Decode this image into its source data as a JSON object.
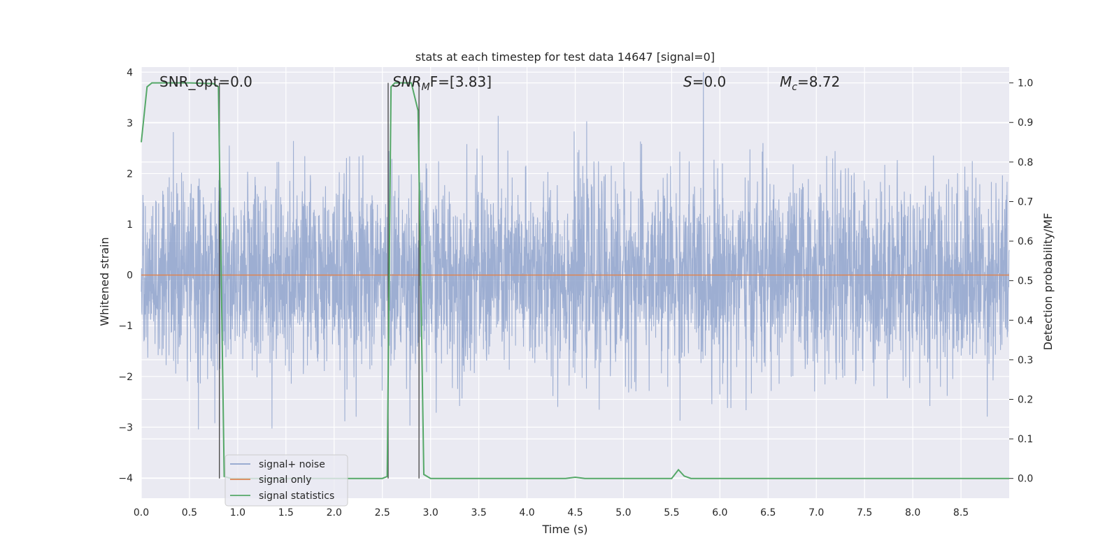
{
  "chart_data": {
    "type": "line",
    "title": "stats at each timestep for test data 14647 [signal=0]",
    "xlabel": "Time (s)",
    "ylabel_left": "Whitened strain",
    "ylabel_right": "Detection probability/MF",
    "xlim": [
      0.0,
      9.0
    ],
    "ylim_left": [
      -4.4,
      4.1
    ],
    "ylim_right": [
      -0.05,
      1.04
    ],
    "x_ticks": [
      0.0,
      0.5,
      1.0,
      1.5,
      2.0,
      2.5,
      3.0,
      3.5,
      4.0,
      4.5,
      5.0,
      5.5,
      6.0,
      6.5,
      7.0,
      7.5,
      8.0,
      8.5
    ],
    "x_tick_labels": [
      "0.0",
      "0.5",
      "1.0",
      "1.5",
      "2.0",
      "2.5",
      "3.0",
      "3.5",
      "4.0",
      "4.5",
      "5.0",
      "5.5",
      "6.0",
      "6.5",
      "7.0",
      "7.5",
      "8.0",
      "8.5"
    ],
    "y_left_ticks": [
      -4,
      -3,
      -2,
      -1,
      0,
      1,
      2,
      3,
      4
    ],
    "y_left_tick_labels": [
      "−4",
      "−3",
      "−2",
      "−1",
      "0",
      "1",
      "2",
      "3",
      "4"
    ],
    "y_right_ticks": [
      0.0,
      0.1,
      0.2,
      0.3,
      0.4,
      0.5,
      0.6,
      0.7,
      0.8,
      0.9,
      1.0
    ],
    "y_right_tick_labels": [
      "0.0",
      "0.1",
      "0.2",
      "0.3",
      "0.4",
      "0.5",
      "0.6",
      "0.7",
      "0.8",
      "0.9",
      "1.0"
    ],
    "grid": true,
    "legend_position": "lower-left",
    "annotations": {
      "snr_opt": "SNR_opt=0.0",
      "snr_mf_main": "SNR",
      "snr_mf_sub": "M",
      "snr_mf_tail": "F=[3.83]",
      "s_main": "S",
      "s_tail": "=0.0",
      "mc_main": "M",
      "mc_sub": "c",
      "mc_tail": "=8.72"
    },
    "series": [
      {
        "name": "signal+ noise",
        "color": "#8fa3cc",
        "description_axis": "left",
        "noise_std": 0.95,
        "clip": [
          -4.0,
          4.0
        ]
      },
      {
        "name": "signal only",
        "color": "#dd8452",
        "description_axis": "left",
        "x": [
          0.0,
          9.0
        ],
        "y": [
          0.0,
          0.0
        ]
      },
      {
        "name": "signal statistics",
        "color": "#55a868",
        "description_axis": "right",
        "x": [
          0.0,
          0.06,
          0.11,
          0.5,
          0.75,
          0.8,
          0.86,
          0.93,
          2.5,
          2.55,
          2.59,
          2.63,
          2.8,
          2.87,
          2.93,
          3.0,
          4.4,
          4.5,
          4.6,
          5.5,
          5.57,
          5.63,
          5.7,
          9.0
        ],
        "y": [
          0.85,
          0.99,
          1.0,
          1.0,
          0.998,
          0.99,
          0.005,
          0.0,
          0.0,
          0.005,
          0.99,
          1.0,
          1.0,
          0.93,
          0.01,
          0.0,
          0.0,
          0.003,
          0.0,
          0.0,
          0.022,
          0.006,
          0.0,
          0.0
        ]
      }
    ],
    "vertical_markers": [
      {
        "x": 0.81,
        "y_top": 1.0
      },
      {
        "x": 2.56,
        "y_top": 1.0
      },
      {
        "x": 2.88,
        "y_top": 1.0
      }
    ]
  }
}
